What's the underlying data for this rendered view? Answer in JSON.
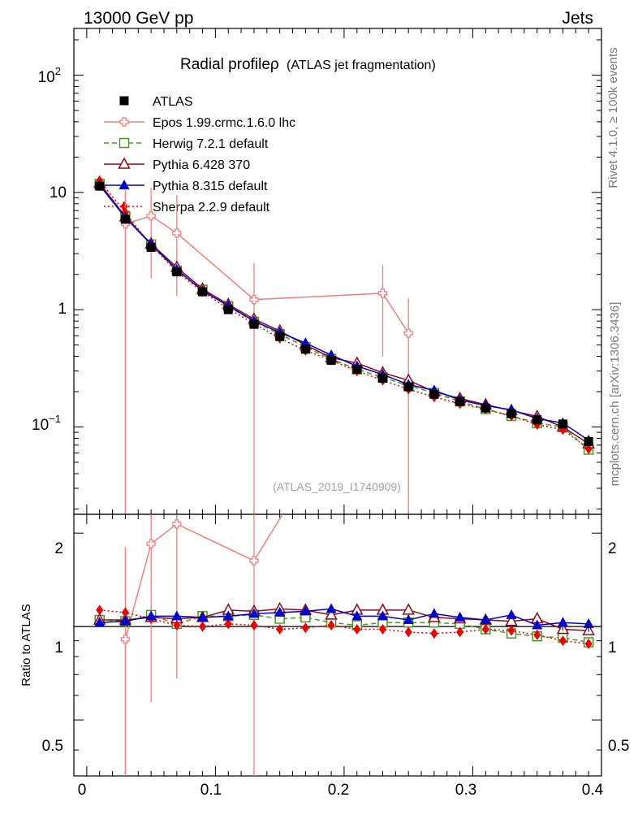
{
  "header": {
    "left": "13000 GeV pp",
    "right": "Jets"
  },
  "side_labels": {
    "top": "Rivet 4.1.0, ≥ 100k events",
    "bottom": "mcplots.cern.ch [arXiv:1306.3436]"
  },
  "chart_data": {
    "type": "line",
    "title": "Radial profileρ",
    "title_suffix": "(ATLAS jet fragmentation)",
    "watermark": "(ATLAS_2019_I1740909)",
    "xlabel": "",
    "ylabel": "",
    "ratio_ylabel": "Ratio to ATLAS",
    "xlim": [
      -0.01,
      0.4
    ],
    "ylim": [
      0.018,
      250
    ],
    "ylog": true,
    "ratio_ylim": [
      0.33,
      2.3
    ],
    "x_ticks": [
      "0",
      "0.1",
      "0.2",
      "0.3",
      "0.4"
    ],
    "y_ticks": [
      "10⁻¹",
      "1",
      "10",
      "10²"
    ],
    "ratio_y_ticks": [
      "0.5",
      "1",
      "2"
    ],
    "x": [
      0.01,
      0.03,
      0.05,
      0.07,
      0.09,
      0.11,
      0.13,
      0.15,
      0.17,
      0.19,
      0.21,
      0.23,
      0.25,
      0.27,
      0.29,
      0.31,
      0.33,
      0.35,
      0.37,
      0.39
    ],
    "series": [
      {
        "name": "ATLAS",
        "color": "#000000",
        "marker": "square",
        "line": "none",
        "values": [
          11.3,
          5.9,
          3.4,
          2.1,
          1.42,
          1.0,
          0.75,
          0.59,
          0.46,
          0.37,
          0.31,
          0.26,
          0.22,
          0.19,
          0.165,
          0.145,
          0.13,
          0.115,
          0.106,
          0.075
        ],
        "ratio": [
          1,
          1,
          1,
          1,
          1,
          1,
          1,
          1,
          1,
          1,
          1,
          1,
          1,
          1,
          1,
          1,
          1,
          1,
          1,
          1
        ]
      },
      {
        "name": "Epos 1.99.crmc.1.6.0 lhc",
        "color": "#f08080",
        "marker": "cross-open",
        "line": "solid",
        "x": [
          0.03,
          0.05,
          0.07,
          0.13,
          0.23,
          0.25
        ],
        "values": [
          5.4,
          6.3,
          4.5,
          1.22,
          1.38,
          0.63
        ],
        "err_low": [
          0.01,
          1.85,
          1.3,
          0.01,
          0.4,
          0.01
        ],
        "err_high": [
          10.5,
          11.0,
          9.5,
          2.5,
          2.4,
          1.25
        ],
        "ratio": [
          0.91,
          1.85,
          2.14,
          1.63
        ],
        "ratio_x": [
          0.03,
          0.05,
          0.07,
          0.13
        ],
        "ratio_err_low": [
          0.3,
          0.57,
          0.68,
          0.3
        ],
        "ratio_err_high": [
          1.8,
          2.6,
          2.6,
          2.6
        ]
      },
      {
        "name": "Herwig 7.2.1 default",
        "color": "#4a9a20",
        "marker": "square-open",
        "line": "dashed",
        "values": [
          11.8,
          6.3,
          3.6,
          2.15,
          1.48,
          1.07,
          0.79,
          0.62,
          0.48,
          0.38,
          0.31,
          0.265,
          0.225,
          0.195,
          0.165,
          0.142,
          0.124,
          0.108,
          0.1,
          0.064
        ],
        "ratio": [
          1.05,
          1.04,
          1.09,
          1.02,
          1.08,
          1.08,
          1.09,
          1.06,
          1.07,
          1.03,
          1.01,
          1.03,
          1.03,
          1.03,
          1.02,
          0.98,
          0.95,
          0.93,
          0.92,
          0.89
        ]
      },
      {
        "name": "Pythia 6.428 370",
        "color": "#8b0a1a",
        "marker": "triangle-open",
        "line": "solid",
        "values": [
          12.0,
          6.2,
          3.65,
          2.3,
          1.5,
          1.11,
          0.83,
          0.66,
          0.5,
          0.39,
          0.35,
          0.29,
          0.25,
          0.2,
          0.175,
          0.155,
          0.138,
          0.123,
          0.1,
          0.072
        ],
        "ratio": [
          1.05,
          1.05,
          1.07,
          1.06,
          1.07,
          1.13,
          1.12,
          1.14,
          1.13,
          1.09,
          1.13,
          1.13,
          1.13,
          1.07,
          1.06,
          1.05,
          1.04,
          1.06,
          0.98,
          0.97
        ]
      },
      {
        "name": "Pythia 8.315 default",
        "color": "#0000cc",
        "marker": "triangle",
        "line": "solid",
        "values": [
          11.5,
          6.1,
          3.6,
          2.2,
          1.45,
          1.08,
          0.8,
          0.64,
          0.52,
          0.41,
          0.33,
          0.28,
          0.23,
          0.205,
          0.17,
          0.152,
          0.14,
          0.118,
          0.108,
          0.077
        ],
        "ratio": [
          1.03,
          1.04,
          1.08,
          1.08,
          1.07,
          1.08,
          1.1,
          1.11,
          1.12,
          1.14,
          1.08,
          1.08,
          1.05,
          1.1,
          1.07,
          1.05,
          1.09,
          1.01,
          1.03,
          1.02
        ]
      },
      {
        "name": "Sherpa 2.2.9 default",
        "color": "#ee0000",
        "marker": "diamond",
        "line": "dotted",
        "values": [
          12.6,
          6.7,
          3.55,
          2.1,
          1.42,
          1.02,
          0.76,
          0.57,
          0.45,
          0.37,
          0.3,
          0.25,
          0.21,
          0.18,
          0.158,
          0.142,
          0.124,
          0.105,
          0.095,
          0.065
        ],
        "ratio": [
          1.13,
          1.11,
          1.06,
          1.01,
          1.0,
          1.02,
          1.01,
          0.98,
          0.99,
          1.01,
          0.98,
          0.98,
          0.96,
          0.95,
          0.96,
          0.98,
          0.97,
          0.94,
          0.9,
          0.88
        ]
      }
    ]
  }
}
